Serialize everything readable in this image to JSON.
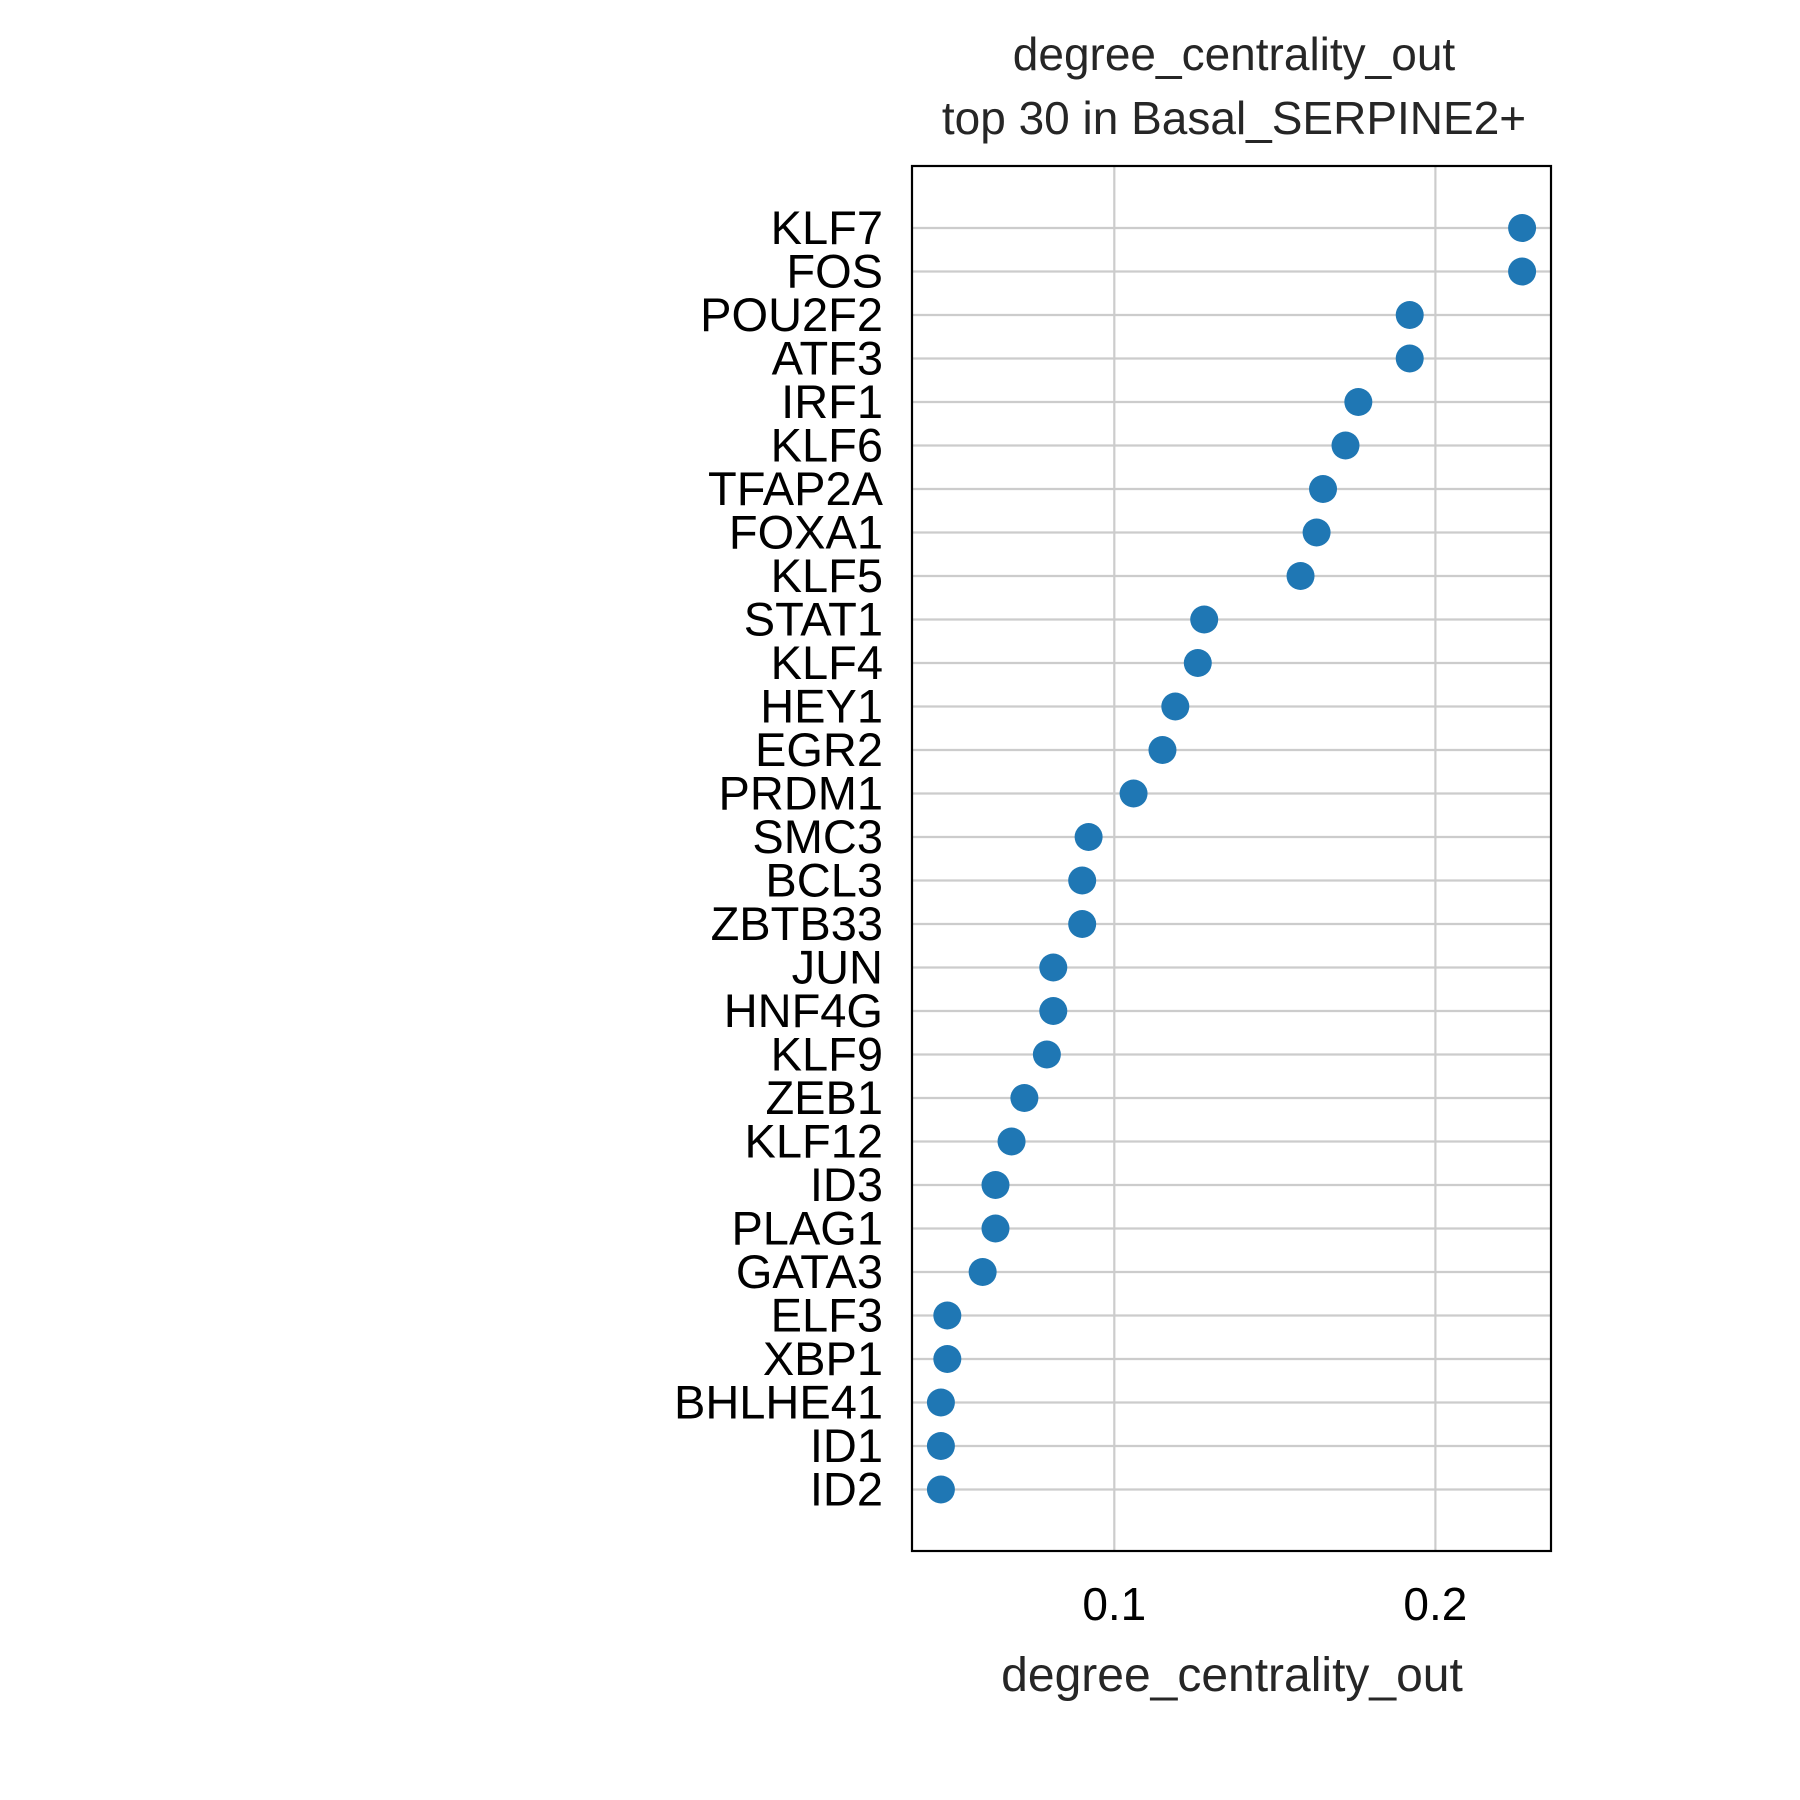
{
  "chart_data": {
    "type": "scatter",
    "title": "degree_centrality_out\ntop 30 in Basal_SERPINE2+",
    "title_lines": [
      "degree_centrality_out",
      "top 30 in Basal_SERPINE2+"
    ],
    "xlabel": "degree_centrality_out",
    "ylabel": "",
    "xlim": [
      0.037,
      0.236
    ],
    "xticks": [
      0.1,
      0.2
    ],
    "xtick_labels": [
      "0.1",
      "0.2"
    ],
    "grid": true,
    "legend": "none",
    "marker_color": "#1f77b4",
    "categories": [
      "KLF7",
      "FOS",
      "POU2F2",
      "ATF3",
      "IRF1",
      "KLF6",
      "TFAP2A",
      "FOXA1",
      "KLF5",
      "STAT1",
      "KLF4",
      "HEY1",
      "EGR2",
      "PRDM1",
      "SMC3",
      "BCL3",
      "ZBTB33",
      "JUN",
      "HNF4G",
      "KLF9",
      "ZEB1",
      "KLF12",
      "ID3",
      "PLAG1",
      "GATA3",
      "ELF3",
      "XBP1",
      "BHLHE41",
      "ID1",
      "ID2"
    ],
    "values": [
      0.227,
      0.227,
      0.192,
      0.192,
      0.176,
      0.172,
      0.165,
      0.163,
      0.158,
      0.128,
      0.126,
      0.119,
      0.115,
      0.106,
      0.092,
      0.09,
      0.09,
      0.081,
      0.081,
      0.079,
      0.072,
      0.068,
      0.063,
      0.063,
      0.059,
      0.048,
      0.048,
      0.046,
      0.046,
      0.046
    ]
  }
}
